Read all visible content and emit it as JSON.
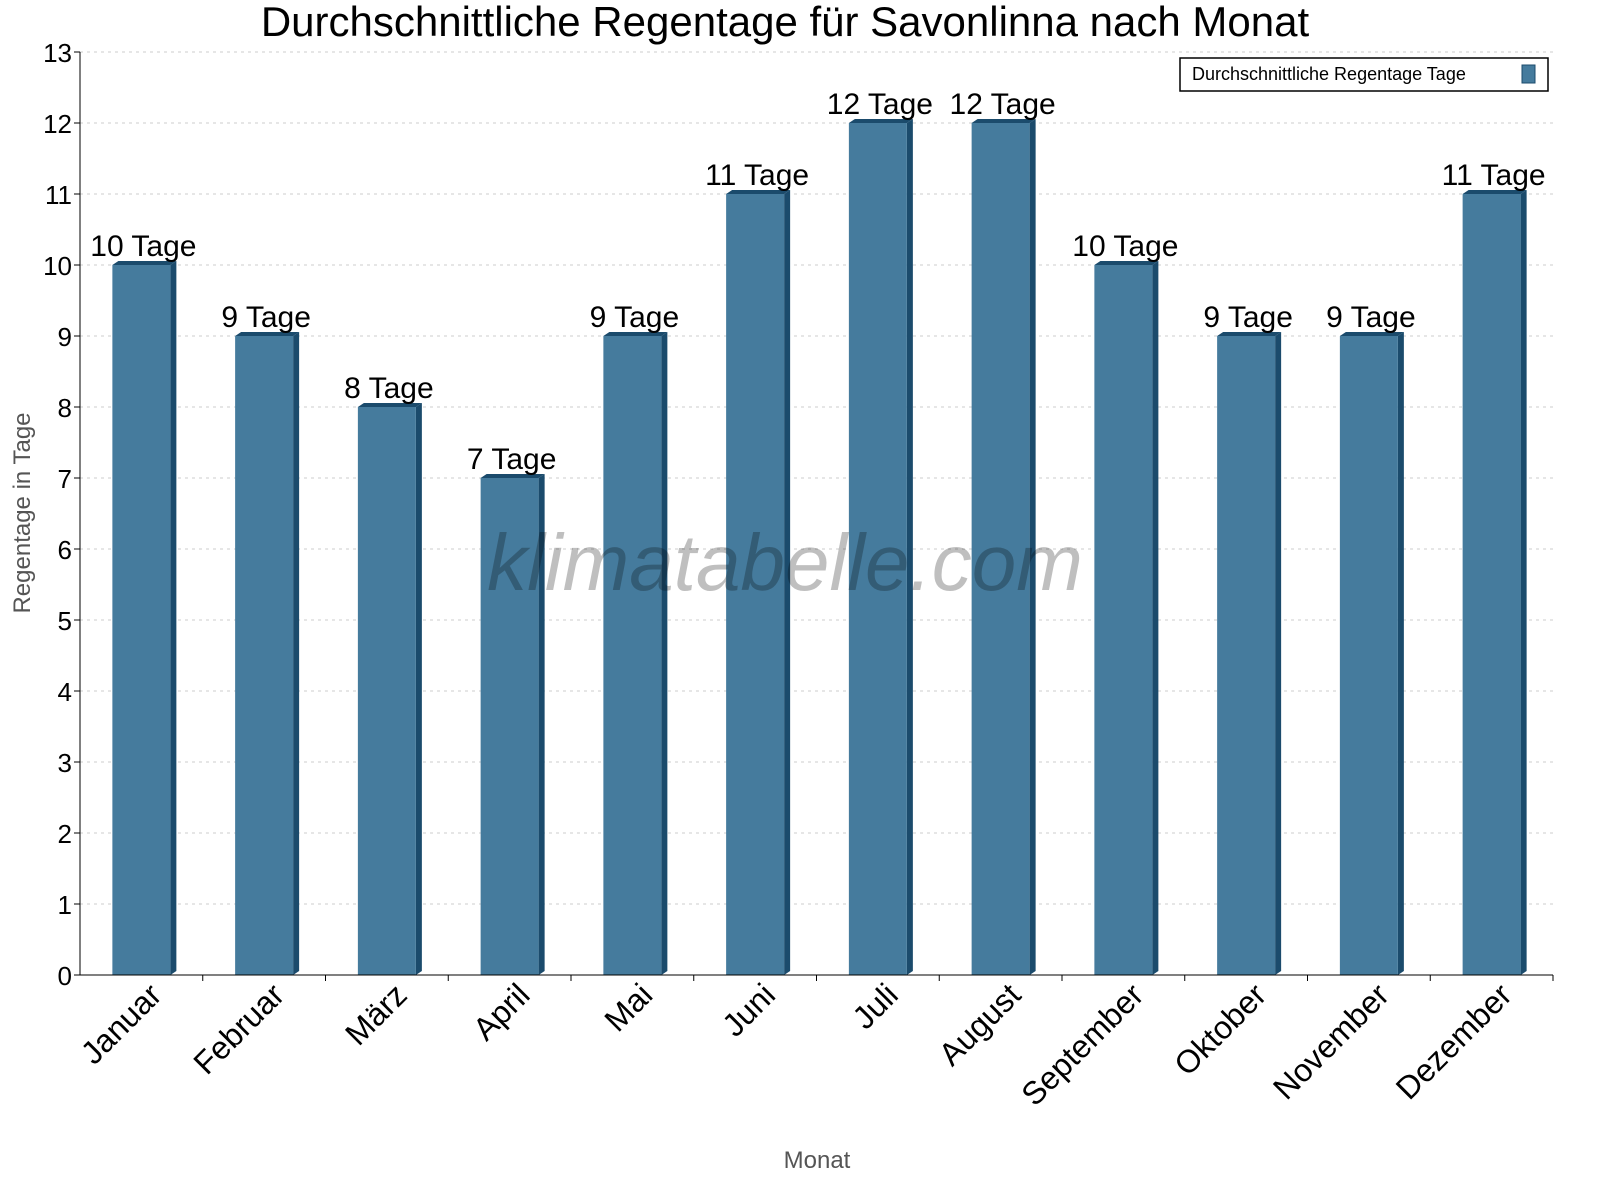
{
  "chart_data": {
    "type": "bar",
    "title": "Durchschnittliche Regentage für Savonlinna nach Monat",
    "xlabel": "Monat",
    "ylabel": "Regentage in Tage",
    "ylim": [
      0,
      13
    ],
    "yticks": [
      0,
      1,
      2,
      3,
      4,
      5,
      6,
      7,
      8,
      9,
      10,
      11,
      12,
      13
    ],
    "grid": true,
    "legend_position": "top-right",
    "categories": [
      "Januar",
      "Februar",
      "März",
      "April",
      "Mai",
      "Juni",
      "Juli",
      "August",
      "September",
      "Oktober",
      "November",
      "Dezember"
    ],
    "series": [
      {
        "name": "Durchschnittliche Regentage Tage",
        "values": [
          10,
          9,
          8,
          7,
          9,
          11,
          12,
          12,
          10,
          9,
          9,
          11
        ]
      }
    ],
    "data_labels": [
      "10 Tage",
      "9 Tage",
      "8 Tage",
      "7 Tage",
      "9 Tage",
      "11 Tage",
      "12 Tage",
      "12 Tage",
      "10 Tage",
      "9 Tage",
      "9 Tage",
      "11 Tage"
    ],
    "colors": {
      "bar": "#457b9d",
      "bar_dark": "#1b4b6c"
    },
    "watermark": "klimatabelle.com"
  }
}
